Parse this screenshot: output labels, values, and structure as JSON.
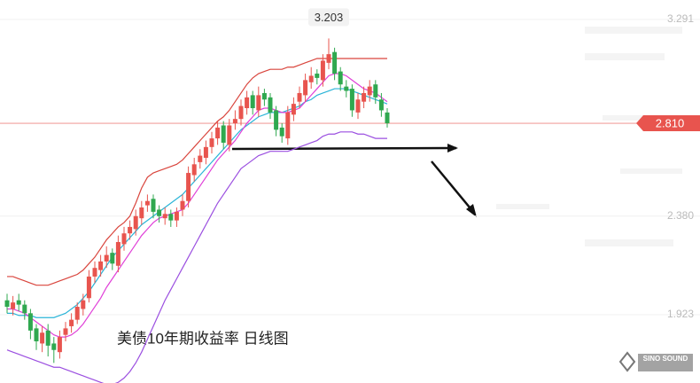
{
  "chart_data": {
    "type": "candlestick",
    "title": "美债10年期收益率  日线图",
    "watermark": "SINO SOUND",
    "ylim": [
      1.607,
      3.381
    ],
    "yticks": [
      3.291,
      {
        "value": 2.38,
        "label": "2.380"
      },
      1.923
    ],
    "grid": true,
    "up_color": "#e8544e",
    "down_color": "#2fa84f",
    "open": [
      1.99,
      1.95,
      1.99,
      1.97,
      1.93,
      1.86,
      1.79,
      1.85,
      1.79,
      1.75,
      1.83,
      1.87,
      1.9,
      1.95,
      2.0,
      2.1,
      2.13,
      2.17,
      2.21,
      2.15,
      2.25,
      2.3,
      2.32,
      2.37,
      2.43,
      2.46,
      2.41,
      2.37,
      2.39,
      2.36,
      2.41,
      2.45,
      2.57,
      2.63,
      2.65,
      2.7,
      2.74,
      2.8,
      2.71,
      2.81,
      2.83,
      2.88,
      2.94,
      2.87,
      2.95,
      2.93,
      2.87,
      2.79,
      2.74,
      2.85,
      2.91,
      2.94,
      3.0,
      3.04,
      3.01,
      3.09,
      3.14,
      3.05,
      2.98,
      2.97,
      2.86,
      2.91,
      2.94,
      2.99,
      2.92,
      2.86
    ],
    "high": [
      2.02,
      2.01,
      2.02,
      1.99,
      1.95,
      1.88,
      1.87,
      1.88,
      1.82,
      1.85,
      1.89,
      1.93,
      1.98,
      2.02,
      2.13,
      2.17,
      2.2,
      2.24,
      2.23,
      2.29,
      2.33,
      2.36,
      2.41,
      2.45,
      2.48,
      2.48,
      2.43,
      2.42,
      2.41,
      2.42,
      2.48,
      2.61,
      2.65,
      2.69,
      2.73,
      2.77,
      2.82,
      2.82,
      2.83,
      2.87,
      2.92,
      2.96,
      2.96,
      2.98,
      2.97,
      2.95,
      2.89,
      2.81,
      2.89,
      2.93,
      2.98,
      3.04,
      3.07,
      3.06,
      3.13,
      3.203,
      3.16,
      3.07,
      3.01,
      2.99,
      2.95,
      2.98,
      3.01,
      3.01,
      2.95,
      2.88
    ],
    "low": [
      1.93,
      1.92,
      1.94,
      1.9,
      1.81,
      1.76,
      1.75,
      1.73,
      1.7,
      1.72,
      1.8,
      1.84,
      1.88,
      1.92,
      1.98,
      2.07,
      2.1,
      2.14,
      2.13,
      2.12,
      2.22,
      2.27,
      2.29,
      2.34,
      2.4,
      2.37,
      2.35,
      2.34,
      2.33,
      2.33,
      2.38,
      2.42,
      2.54,
      2.6,
      2.62,
      2.67,
      2.71,
      2.69,
      2.68,
      2.78,
      2.8,
      2.85,
      2.85,
      2.84,
      2.89,
      2.83,
      2.75,
      2.72,
      2.71,
      2.82,
      2.88,
      2.91,
      2.97,
      2.99,
      2.98,
      3.06,
      3.01,
      2.96,
      2.93,
      2.84,
      2.83,
      2.88,
      2.91,
      2.9,
      2.84,
      2.79
    ],
    "close": [
      1.96,
      1.98,
      1.97,
      1.93,
      1.85,
      1.8,
      1.84,
      1.78,
      1.76,
      1.82,
      1.86,
      1.9,
      1.96,
      1.99,
      2.1,
      2.14,
      2.17,
      2.2,
      2.16,
      2.26,
      2.3,
      2.33,
      2.38,
      2.42,
      2.45,
      2.4,
      2.38,
      2.39,
      2.36,
      2.4,
      2.45,
      2.58,
      2.62,
      2.66,
      2.7,
      2.74,
      2.79,
      2.72,
      2.8,
      2.83,
      2.89,
      2.93,
      2.88,
      2.94,
      2.92,
      2.86,
      2.78,
      2.75,
      2.86,
      2.9,
      2.95,
      3.01,
      3.03,
      3.02,
      3.1,
      3.13,
      3.04,
      2.99,
      2.96,
      2.87,
      2.92,
      2.95,
      2.98,
      2.93,
      2.87,
      2.81
    ],
    "price_line": {
      "value": 2.81,
      "label": "2.810",
      "color": "#e8544e"
    },
    "series": [
      {
        "color": "#d9453d",
        "values": [
          2.1,
          2.1,
          2.09,
          2.08,
          2.07,
          2.06,
          2.06,
          2.06,
          2.07,
          2.08,
          2.09,
          2.1,
          2.11,
          2.13,
          2.16,
          2.19,
          2.23,
          2.27,
          2.3,
          2.33,
          2.35,
          2.38,
          2.44,
          2.51,
          2.56,
          2.58,
          2.59,
          2.6,
          2.61,
          2.62,
          2.64,
          2.67,
          2.7,
          2.73,
          2.76,
          2.79,
          2.82,
          2.84,
          2.87,
          2.91,
          2.95,
          2.99,
          3.02,
          3.04,
          3.05,
          3.06,
          3.06,
          3.06,
          3.07,
          3.07,
          3.08,
          3.09,
          3.1,
          3.11,
          3.11,
          3.11,
          3.11,
          3.11,
          3.11,
          3.11,
          3.11,
          3.11,
          3.11,
          3.11,
          3.11,
          3.11
        ]
      },
      {
        "color": "#2bb5d8",
        "values": [
          1.93,
          1.93,
          1.92,
          1.92,
          1.92,
          1.91,
          1.91,
          1.91,
          1.91,
          1.92,
          1.93,
          1.95,
          1.97,
          2.0,
          2.03,
          2.07,
          2.11,
          2.15,
          2.19,
          2.22,
          2.25,
          2.28,
          2.31,
          2.34,
          2.36,
          2.38,
          2.4,
          2.42,
          2.44,
          2.46,
          2.48,
          2.51,
          2.54,
          2.57,
          2.6,
          2.63,
          2.66,
          2.69,
          2.72,
          2.75,
          2.78,
          2.8,
          2.82,
          2.84,
          2.85,
          2.86,
          2.86,
          2.86,
          2.87,
          2.88,
          2.89,
          2.91,
          2.92,
          2.94,
          2.95,
          2.96,
          2.97,
          2.97,
          2.97,
          2.96,
          2.95,
          2.94,
          2.93,
          2.92,
          2.91,
          2.9
        ]
      },
      {
        "color": "#9b4fe0",
        "values": [
          1.76,
          1.75,
          1.74,
          1.73,
          1.72,
          1.71,
          1.7,
          1.69,
          1.68,
          1.68,
          1.67,
          1.66,
          1.65,
          1.64,
          1.63,
          1.62,
          1.61,
          1.6,
          1.6,
          1.61,
          1.63,
          1.66,
          1.7,
          1.75,
          1.81,
          1.87,
          1.93,
          1.99,
          2.04,
          2.09,
          2.14,
          2.19,
          2.24,
          2.29,
          2.34,
          2.39,
          2.44,
          2.48,
          2.52,
          2.56,
          2.6,
          2.62,
          2.64,
          2.66,
          2.67,
          2.68,
          2.68,
          2.68,
          2.68,
          2.69,
          2.7,
          2.71,
          2.72,
          2.73,
          2.75,
          2.76,
          2.76,
          2.77,
          2.77,
          2.77,
          2.76,
          2.76,
          2.75,
          2.74,
          2.74,
          2.74
        ]
      },
      {
        "color": "#e040d8",
        "values": [
          1.95,
          1.95,
          1.94,
          1.93,
          1.91,
          1.89,
          1.87,
          1.85,
          1.83,
          1.82,
          1.82,
          1.83,
          1.85,
          1.88,
          1.92,
          1.96,
          2.0,
          2.05,
          2.09,
          2.13,
          2.17,
          2.21,
          2.25,
          2.29,
          2.32,
          2.35,
          2.37,
          2.38,
          2.39,
          2.4,
          2.41,
          2.44,
          2.48,
          2.52,
          2.56,
          2.6,
          2.64,
          2.67,
          2.7,
          2.73,
          2.77,
          2.81,
          2.84,
          2.87,
          2.88,
          2.88,
          2.87,
          2.86,
          2.86,
          2.87,
          2.88,
          2.91,
          2.94,
          2.97,
          3.0,
          3.03,
          3.04,
          3.04,
          3.03,
          3.01,
          2.99,
          2.97,
          2.96,
          2.95,
          2.93,
          2.91
        ]
      }
    ]
  }
}
